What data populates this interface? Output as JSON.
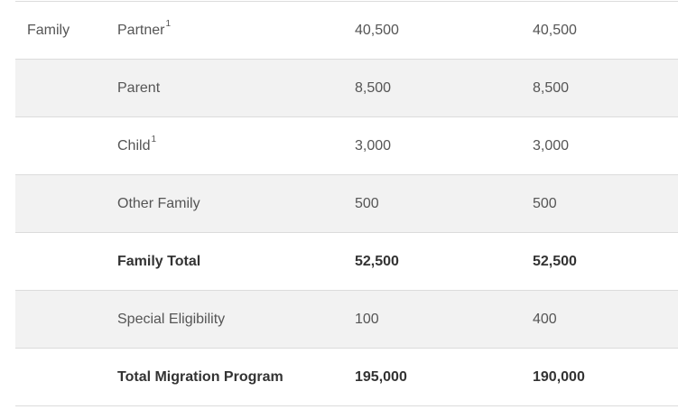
{
  "table": {
    "rows": [
      {
        "category": "Family",
        "stream": "Partner",
        "note": "1",
        "first": "40,500",
        "second": "40,500",
        "shaded": false,
        "bold": false
      },
      {
        "category": "",
        "stream": "Parent",
        "note": "",
        "first": "8,500",
        "second": "8,500",
        "shaded": true,
        "bold": false
      },
      {
        "category": "",
        "stream": "Child",
        "note": "1",
        "first": "3,000",
        "second": "3,000",
        "shaded": false,
        "bold": false
      },
      {
        "category": "",
        "stream": "Other Family",
        "note": "",
        "first": "500",
        "second": "500",
        "shaded": true,
        "bold": false
      },
      {
        "category": "",
        "stream": "Family Total",
        "note": "",
        "first": "52,500",
        "second": "52,500",
        "shaded": false,
        "bold": true
      },
      {
        "category": "",
        "stream": "Special Eligibility",
        "note": "",
        "first": "100",
        "second": "400",
        "shaded": true,
        "bold": false
      },
      {
        "category": "",
        "stream": "Total Migration Program",
        "note": "",
        "first": "195,000",
        "second": "190,000",
        "shaded": false,
        "bold": true
      }
    ]
  },
  "colors": {
    "row_shade": "#f2f2f2",
    "border": "#dcdcdc",
    "text": "#555555",
    "bold_text": "#333333"
  }
}
